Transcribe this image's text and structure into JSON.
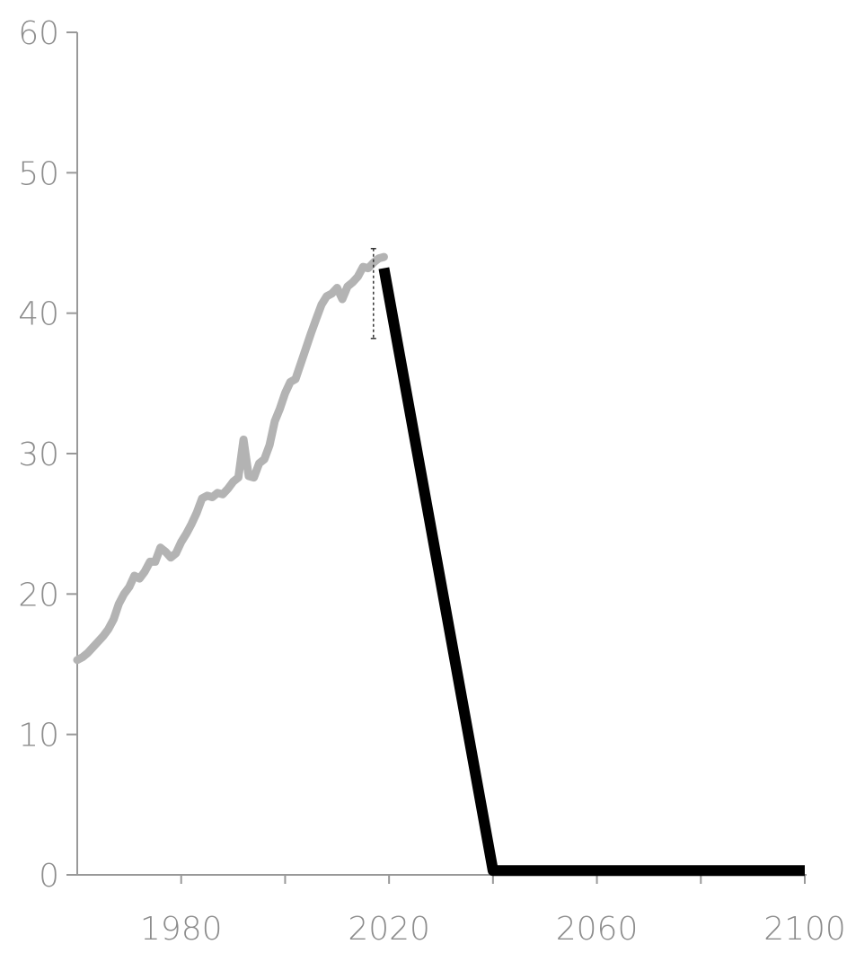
{
  "chart_data": {
    "type": "line",
    "title": "",
    "xlabel": "",
    "ylabel": "",
    "xlim": [
      1960,
      2100
    ],
    "ylim": [
      0,
      60
    ],
    "grid": false,
    "x_ticks": [
      1980,
      2000,
      2020,
      2040,
      2060,
      2080,
      2100
    ],
    "x_tick_labels": [
      "1980",
      "",
      "2020",
      "",
      "2060",
      "",
      "2100"
    ],
    "y_ticks": [
      0,
      10,
      20,
      30,
      40,
      50,
      60
    ],
    "y_tick_labels": [
      "0",
      "10",
      "20",
      "30",
      "40",
      "50",
      "60"
    ],
    "series": [
      {
        "role": "historical",
        "color": "#b3b3b3",
        "x": [
          1960,
          1961,
          1962,
          1963,
          1964,
          1965,
          1966,
          1967,
          1968,
          1969,
          1970,
          1971,
          1972,
          1973,
          1974,
          1975,
          1976,
          1977,
          1978,
          1979,
          1980,
          1981,
          1982,
          1983,
          1984,
          1985,
          1986,
          1987,
          1988,
          1989,
          1990,
          1991,
          1992,
          1993,
          1994,
          1995,
          1996,
          1997,
          1998,
          1999,
          2000,
          2001,
          2002,
          2003,
          2004,
          2005,
          2006,
          2007,
          2008,
          2009,
          2010,
          2011,
          2012,
          2013,
          2014,
          2015,
          2016,
          2017,
          2018,
          2019
        ],
        "values": [
          15.3,
          15.5,
          15.8,
          16.2,
          16.6,
          17.0,
          17.5,
          18.2,
          19.3,
          20.0,
          20.5,
          21.3,
          21.1,
          21.6,
          22.3,
          22.3,
          23.3,
          23.0,
          22.6,
          22.9,
          23.7,
          24.3,
          25.0,
          25.8,
          26.8,
          27.0,
          26.9,
          27.2,
          27.1,
          27.5,
          28.0,
          28.3,
          31.0,
          28.4,
          28.3,
          29.3,
          29.6,
          30.6,
          32.3,
          33.2,
          34.3,
          35.1,
          35.3,
          36.4,
          37.5,
          38.6,
          39.6,
          40.6,
          41.2,
          41.4,
          41.8,
          41.0,
          41.9,
          42.2,
          42.6,
          43.3,
          43.2,
          43.6,
          43.9,
          44.0
        ],
        "uncertainty": {
          "x": 2017,
          "low": 38.2,
          "high": 44.6
        }
      },
      {
        "role": "pathway",
        "color": "#000000",
        "x": [
          2019,
          2040,
          2100
        ],
        "values": [
          43.2,
          0.3,
          0.3
        ]
      }
    ]
  }
}
